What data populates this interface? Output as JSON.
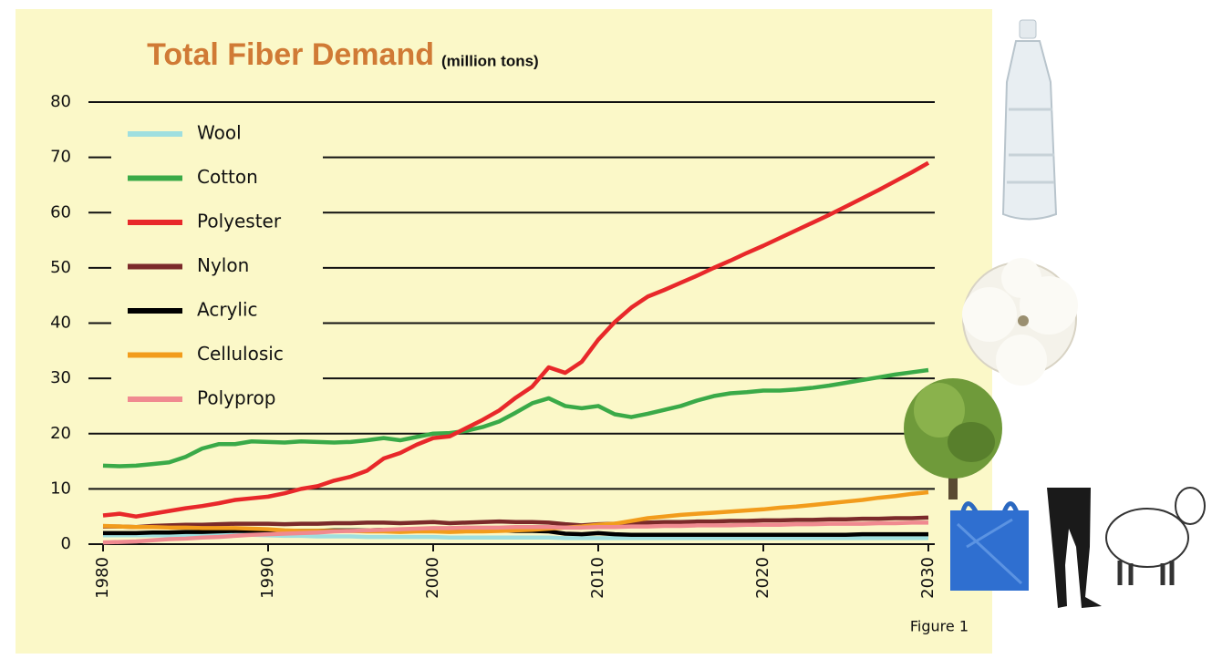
{
  "chart_data": {
    "type": "line",
    "title": "Total Fiber Demand",
    "subtitle": "(million tons)",
    "caption": "Figure 1",
    "x": [
      1980,
      1981,
      1982,
      1983,
      1984,
      1985,
      1986,
      1987,
      1988,
      1989,
      1990,
      1991,
      1992,
      1993,
      1994,
      1995,
      1996,
      1997,
      1998,
      1999,
      2000,
      2001,
      2002,
      2003,
      2004,
      2005,
      2006,
      2007,
      2008,
      2009,
      2010,
      2011,
      2012,
      2013,
      2014,
      2015,
      2016,
      2017,
      2018,
      2019,
      2020,
      2021,
      2022,
      2023,
      2024,
      2025,
      2026,
      2027,
      2028,
      2029,
      2030
    ],
    "xlim": [
      1980,
      2030
    ],
    "xticks": [
      1980,
      1990,
      2000,
      2010,
      2020,
      2030
    ],
    "ylim": [
      0,
      80
    ],
    "yticks": [
      0,
      10,
      20,
      30,
      40,
      50,
      60,
      70,
      80
    ],
    "grid": true,
    "legend": "top-left",
    "series": [
      {
        "name": "Wool",
        "color": "#9fdfdf",
        "values": [
          1.6,
          1.6,
          1.6,
          1.6,
          1.6,
          1.7,
          1.7,
          1.7,
          1.7,
          1.7,
          1.6,
          1.5,
          1.5,
          1.4,
          1.4,
          1.4,
          1.3,
          1.3,
          1.3,
          1.3,
          1.3,
          1.2,
          1.2,
          1.2,
          1.2,
          1.2,
          1.2,
          1.2,
          1.1,
          1.1,
          1.1,
          1.1,
          1.1,
          1.1,
          1.1,
          1.1,
          1.1,
          1.1,
          1.1,
          1.1,
          1.1,
          1.1,
          1.1,
          1.1,
          1.1,
          1.1,
          1.1,
          1.1,
          1.1,
          1.1,
          1.1
        ]
      },
      {
        "name": "Cotton",
        "color": "#3aaa48",
        "values": [
          14.2,
          14.1,
          14.2,
          14.5,
          14.8,
          15.8,
          17.3,
          18.1,
          18.1,
          18.6,
          18.5,
          18.4,
          18.6,
          18.5,
          18.4,
          18.5,
          18.8,
          19.2,
          18.8,
          19.4,
          20.0,
          20.1,
          20.5,
          21.2,
          22.2,
          23.8,
          25.5,
          26.4,
          25.0,
          24.6,
          25.0,
          23.5,
          23.0,
          23.6,
          24.3,
          25.0,
          26.0,
          26.8,
          27.3,
          27.5,
          27.8,
          27.8,
          28.0,
          28.3,
          28.7,
          29.2,
          29.7,
          30.2,
          30.7,
          31.1,
          31.5
        ]
      },
      {
        "name": "Polyester",
        "color": "#e8282a",
        "values": [
          5.2,
          5.5,
          5.0,
          5.5,
          6.0,
          6.5,
          6.9,
          7.4,
          8.0,
          8.3,
          8.6,
          9.2,
          10.0,
          10.5,
          11.5,
          12.2,
          13.3,
          15.5,
          16.5,
          18.0,
          19.2,
          19.5,
          21.0,
          22.5,
          24.2,
          26.5,
          28.5,
          32.0,
          31.0,
          33.0,
          37.0,
          40.2,
          42.8,
          44.8,
          46.0,
          47.3,
          48.6,
          50.0,
          51.3,
          52.7,
          54.0,
          55.4,
          56.8,
          58.2,
          59.6,
          61.1,
          62.6,
          64.1,
          65.7,
          67.3,
          69.0
        ]
      },
      {
        "name": "Nylon",
        "color": "#7b2a2a",
        "values": [
          3.2,
          3.2,
          3.1,
          3.3,
          3.4,
          3.5,
          3.5,
          3.6,
          3.7,
          3.7,
          3.7,
          3.6,
          3.7,
          3.7,
          3.8,
          3.8,
          3.9,
          3.9,
          3.8,
          3.9,
          4.0,
          3.8,
          3.9,
          4.0,
          4.1,
          4.0,
          4.0,
          3.9,
          3.6,
          3.4,
          3.6,
          3.7,
          3.8,
          3.9,
          4.0,
          4.0,
          4.1,
          4.1,
          4.2,
          4.2,
          4.3,
          4.3,
          4.4,
          4.4,
          4.5,
          4.5,
          4.6,
          4.6,
          4.7,
          4.7,
          4.8
        ]
      },
      {
        "name": "Acrylic",
        "color": "#000000",
        "values": [
          2.0,
          2.0,
          2.0,
          2.1,
          2.1,
          2.2,
          2.2,
          2.3,
          2.4,
          2.4,
          2.4,
          2.4,
          2.4,
          2.4,
          2.5,
          2.5,
          2.5,
          2.6,
          2.6,
          2.6,
          2.6,
          2.5,
          2.5,
          2.5,
          2.5,
          2.4,
          2.4,
          2.3,
          1.9,
          1.8,
          2.0,
          1.8,
          1.7,
          1.7,
          1.7,
          1.7,
          1.7,
          1.7,
          1.7,
          1.7,
          1.7,
          1.7,
          1.7,
          1.7,
          1.7,
          1.7,
          1.8,
          1.8,
          1.8,
          1.8,
          1.8
        ]
      },
      {
        "name": "Cellulosic",
        "color": "#f29c1c",
        "values": [
          3.3,
          3.2,
          3.1,
          3.1,
          3.0,
          3.0,
          2.9,
          2.9,
          2.9,
          2.8,
          2.7,
          2.5,
          2.4,
          2.4,
          2.4,
          2.4,
          2.3,
          2.3,
          2.2,
          2.3,
          2.3,
          2.2,
          2.3,
          2.3,
          2.4,
          2.5,
          2.6,
          2.8,
          3.0,
          3.2,
          3.5,
          3.7,
          4.2,
          4.7,
          5.0,
          5.3,
          5.5,
          5.7,
          5.9,
          6.1,
          6.3,
          6.6,
          6.8,
          7.1,
          7.4,
          7.7,
          8.0,
          8.4,
          8.7,
          9.1,
          9.4
        ]
      },
      {
        "name": "Polyprop",
        "color": "#f08a90",
        "values": [
          0.3,
          0.4,
          0.5,
          0.7,
          0.9,
          1.0,
          1.2,
          1.3,
          1.5,
          1.7,
          1.8,
          1.9,
          2.0,
          2.1,
          2.3,
          2.4,
          2.5,
          2.6,
          2.7,
          2.8,
          2.9,
          2.9,
          3.0,
          3.0,
          3.0,
          3.1,
          3.1,
          3.1,
          3.0,
          3.0,
          3.1,
          3.1,
          3.2,
          3.2,
          3.3,
          3.3,
          3.4,
          3.4,
          3.4,
          3.5,
          3.5,
          3.5,
          3.6,
          3.6,
          3.7,
          3.7,
          3.7,
          3.8,
          3.8,
          3.9,
          3.9
        ]
      }
    ]
  }
}
